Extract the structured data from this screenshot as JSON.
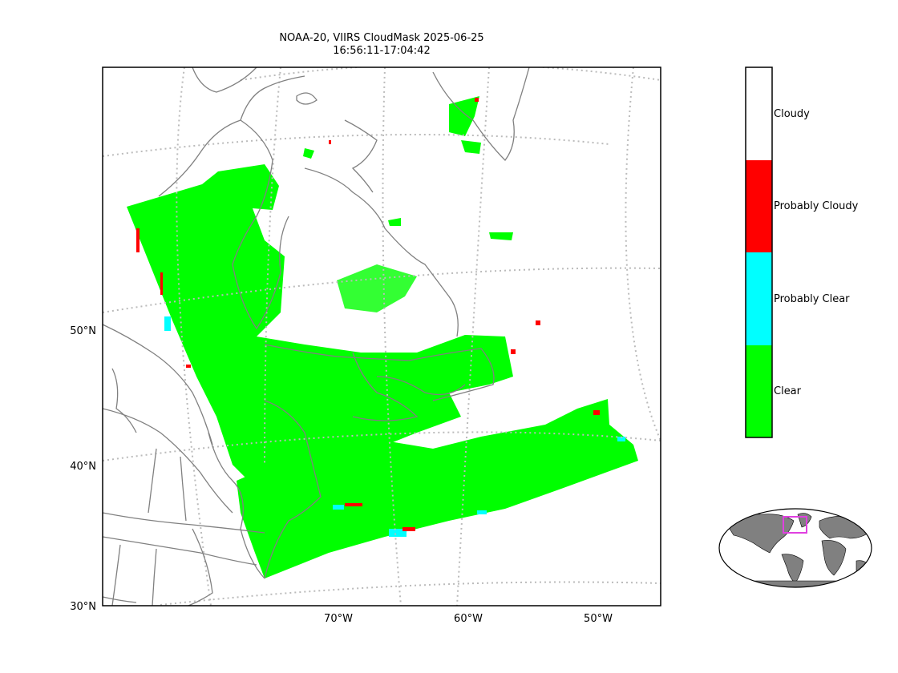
{
  "title": {
    "line1": "NOAA-20, VIIRS CloudMask 2025-06-25",
    "line2": "16:56:11-17:04:42"
  },
  "map": {
    "lat_labels": [
      "50°N",
      "40°N",
      "30°N"
    ],
    "lon_labels": [
      "70°W",
      "60°W",
      "50°W"
    ],
    "colors": {
      "clear": "#00ff00",
      "probably_clear": "#00ffff",
      "probably_cloudy": "#ff0000",
      "cloudy": "#ffffff",
      "coastline": "#808080",
      "graticule": "#bbbbbb",
      "inset_box": "#e040e0",
      "inset_land": "#808080"
    }
  },
  "colorbar": {
    "classes": [
      {
        "label": "Cloudy",
        "color": "#ffffff"
      },
      {
        "label": "Probably Cloudy",
        "color": "#ff0000"
      },
      {
        "label": "Probably Clear",
        "color": "#00ffff"
      },
      {
        "label": "Clear",
        "color": "#00ff00"
      }
    ]
  }
}
